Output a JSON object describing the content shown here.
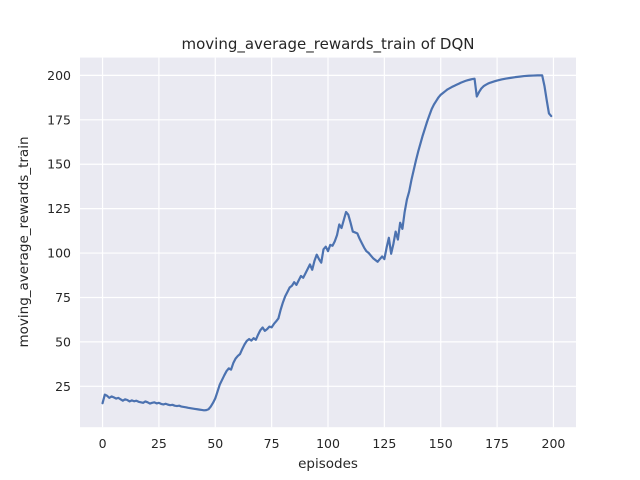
{
  "figure": {
    "background_color": "#ffffff",
    "plot_background_color": "#eaeaf2",
    "grid_color": "#ffffff",
    "text_color": "#262626"
  },
  "chart_data": {
    "type": "line",
    "title": "moving_average_rewards_train of DQN",
    "xlabel": "episodes",
    "ylabel": "moving_average_rewards_train",
    "x_ticks": [
      0,
      25,
      50,
      75,
      100,
      125,
      150,
      175,
      200
    ],
    "y_ticks": [
      25,
      50,
      75,
      100,
      125,
      150,
      175,
      200
    ],
    "xlim": [
      -10,
      210
    ],
    "ylim": [
      2,
      210
    ],
    "grid": true,
    "legend": null,
    "series": [
      {
        "name": "moving_average_rewards_train",
        "color": "#4c72b0",
        "points": [
          [
            0,
            15.5
          ],
          [
            1,
            20.3
          ],
          [
            2,
            19.7
          ],
          [
            3,
            18.5
          ],
          [
            4,
            19.3
          ],
          [
            5,
            18.8
          ],
          [
            6,
            18.1
          ],
          [
            7,
            18.5
          ],
          [
            8,
            17.7
          ],
          [
            9,
            16.9
          ],
          [
            10,
            17.7
          ],
          [
            11,
            17.3
          ],
          [
            12,
            16.5
          ],
          [
            13,
            17.1
          ],
          [
            14,
            16.6
          ],
          [
            15,
            16.9
          ],
          [
            16,
            16.3
          ],
          [
            17,
            16.0
          ],
          [
            18,
            15.7
          ],
          [
            19,
            16.5
          ],
          [
            20,
            16.0
          ],
          [
            21,
            15.3
          ],
          [
            22,
            15.7
          ],
          [
            23,
            16.0
          ],
          [
            24,
            15.4
          ],
          [
            25,
            15.7
          ],
          [
            26,
            15.1
          ],
          [
            27,
            14.8
          ],
          [
            28,
            15.2
          ],
          [
            29,
            14.7
          ],
          [
            30,
            14.4
          ],
          [
            31,
            14.6
          ],
          [
            32,
            14.1
          ],
          [
            33,
            13.9
          ],
          [
            34,
            14.1
          ],
          [
            35,
            13.6
          ],
          [
            36,
            13.4
          ],
          [
            37,
            13.2
          ],
          [
            38,
            12.9
          ],
          [
            39,
            12.7
          ],
          [
            40,
            12.5
          ],
          [
            41,
            12.3
          ],
          [
            42,
            12.1
          ],
          [
            43,
            11.9
          ],
          [
            44,
            11.7
          ],
          [
            45,
            11.5
          ],
          [
            46,
            11.6
          ],
          [
            47,
            12.1
          ],
          [
            48,
            13.6
          ],
          [
            49,
            15.7
          ],
          [
            50,
            18.2
          ],
          [
            51,
            22.1
          ],
          [
            52,
            26.0
          ],
          [
            53,
            28.6
          ],
          [
            54,
            31.2
          ],
          [
            55,
            33.6
          ],
          [
            56,
            35.1
          ],
          [
            57,
            34.4
          ],
          [
            58,
            38.1
          ],
          [
            59,
            40.6
          ],
          [
            60,
            42.1
          ],
          [
            61,
            43.2
          ],
          [
            62,
            46.1
          ],
          [
            63,
            48.6
          ],
          [
            64,
            50.6
          ],
          [
            65,
            51.6
          ],
          [
            66,
            50.7
          ],
          [
            67,
            52.1
          ],
          [
            68,
            51.2
          ],
          [
            69,
            54.1
          ],
          [
            70,
            56.6
          ],
          [
            71,
            58.1
          ],
          [
            72,
            56.2
          ],
          [
            73,
            57.2
          ],
          [
            74,
            58.6
          ],
          [
            75,
            58.2
          ],
          [
            76,
            60.1
          ],
          [
            77,
            61.6
          ],
          [
            78,
            63.2
          ],
          [
            79,
            68.1
          ],
          [
            80,
            72.2
          ],
          [
            81,
            75.6
          ],
          [
            82,
            78.1
          ],
          [
            83,
            80.6
          ],
          [
            84,
            81.6
          ],
          [
            85,
            83.6
          ],
          [
            86,
            82.1
          ],
          [
            87,
            84.6
          ],
          [
            88,
            87.1
          ],
          [
            89,
            86.1
          ],
          [
            90,
            88.6
          ],
          [
            91,
            91.1
          ],
          [
            92,
            93.6
          ],
          [
            93,
            90.6
          ],
          [
            94,
            95.6
          ],
          [
            95,
            99.1
          ],
          [
            96,
            96.6
          ],
          [
            97,
            94.6
          ],
          [
            98,
            102.1
          ],
          [
            99,
            103.6
          ],
          [
            100,
            101.1
          ],
          [
            101,
            104.6
          ],
          [
            102,
            104.1
          ],
          [
            103,
            106.6
          ],
          [
            104,
            110.1
          ],
          [
            105,
            116.1
          ],
          [
            106,
            114.1
          ],
          [
            107,
            118.6
          ],
          [
            108,
            123.1
          ],
          [
            109,
            121.6
          ],
          [
            110,
            117.1
          ],
          [
            111,
            112.1
          ],
          [
            112,
            111.6
          ],
          [
            113,
            111.1
          ],
          [
            114,
            108.1
          ],
          [
            115,
            105.6
          ],
          [
            116,
            103.1
          ],
          [
            117,
            101.1
          ],
          [
            118,
            100.1
          ],
          [
            119,
            98.6
          ],
          [
            120,
            97.1
          ],
          [
            121,
            96.1
          ],
          [
            122,
            95.1
          ],
          [
            123,
            96.6
          ],
          [
            124,
            98.1
          ],
          [
            125,
            96.6
          ],
          [
            126,
            103.1
          ],
          [
            127,
            108.6
          ],
          [
            128,
            99.6
          ],
          [
            129,
            105.1
          ],
          [
            130,
            112.1
          ],
          [
            131,
            107.6
          ],
          [
            132,
            117.1
          ],
          [
            133,
            113.6
          ],
          [
            134,
            123.1
          ],
          [
            135,
            130.1
          ],
          [
            136,
            134.6
          ],
          [
            137,
            141.1
          ],
          [
            138,
            146.6
          ],
          [
            139,
            152.1
          ],
          [
            140,
            157.1
          ],
          [
            141,
            161.6
          ],
          [
            142,
            166.1
          ],
          [
            143,
            170.1
          ],
          [
            144,
            174.1
          ],
          [
            145,
            177.6
          ],
          [
            146,
            181.1
          ],
          [
            147,
            183.6
          ],
          [
            148,
            185.6
          ],
          [
            149,
            187.6
          ],
          [
            150,
            189.1
          ],
          [
            151,
            190.1
          ],
          [
            152,
            191.1
          ],
          [
            153,
            192.1
          ],
          [
            154,
            192.8
          ],
          [
            155,
            193.5
          ],
          [
            156,
            194.1
          ],
          [
            157,
            194.7
          ],
          [
            158,
            195.3
          ],
          [
            159,
            195.9
          ],
          [
            160,
            196.4
          ],
          [
            161,
            196.9
          ],
          [
            162,
            197.3
          ],
          [
            163,
            197.6
          ],
          [
            164,
            197.9
          ],
          [
            165,
            198.1
          ],
          [
            166,
            188.1
          ],
          [
            167,
            190.6
          ],
          [
            168,
            192.6
          ],
          [
            169,
            193.9
          ],
          [
            170,
            194.7
          ],
          [
            171,
            195.4
          ],
          [
            172,
            195.9
          ],
          [
            173,
            196.3
          ],
          [
            174,
            196.7
          ],
          [
            175,
            197.1
          ],
          [
            177,
            197.7
          ],
          [
            179,
            198.2
          ],
          [
            181,
            198.6
          ],
          [
            183,
            199.0
          ],
          [
            185,
            199.3
          ],
          [
            187,
            199.6
          ],
          [
            189,
            199.8
          ],
          [
            191,
            199.9
          ],
          [
            193,
            200.0
          ],
          [
            195,
            200.0
          ],
          [
            196,
            194.1
          ],
          [
            197,
            186.1
          ],
          [
            198,
            178.6
          ],
          [
            199,
            177.1
          ]
        ]
      }
    ]
  }
}
